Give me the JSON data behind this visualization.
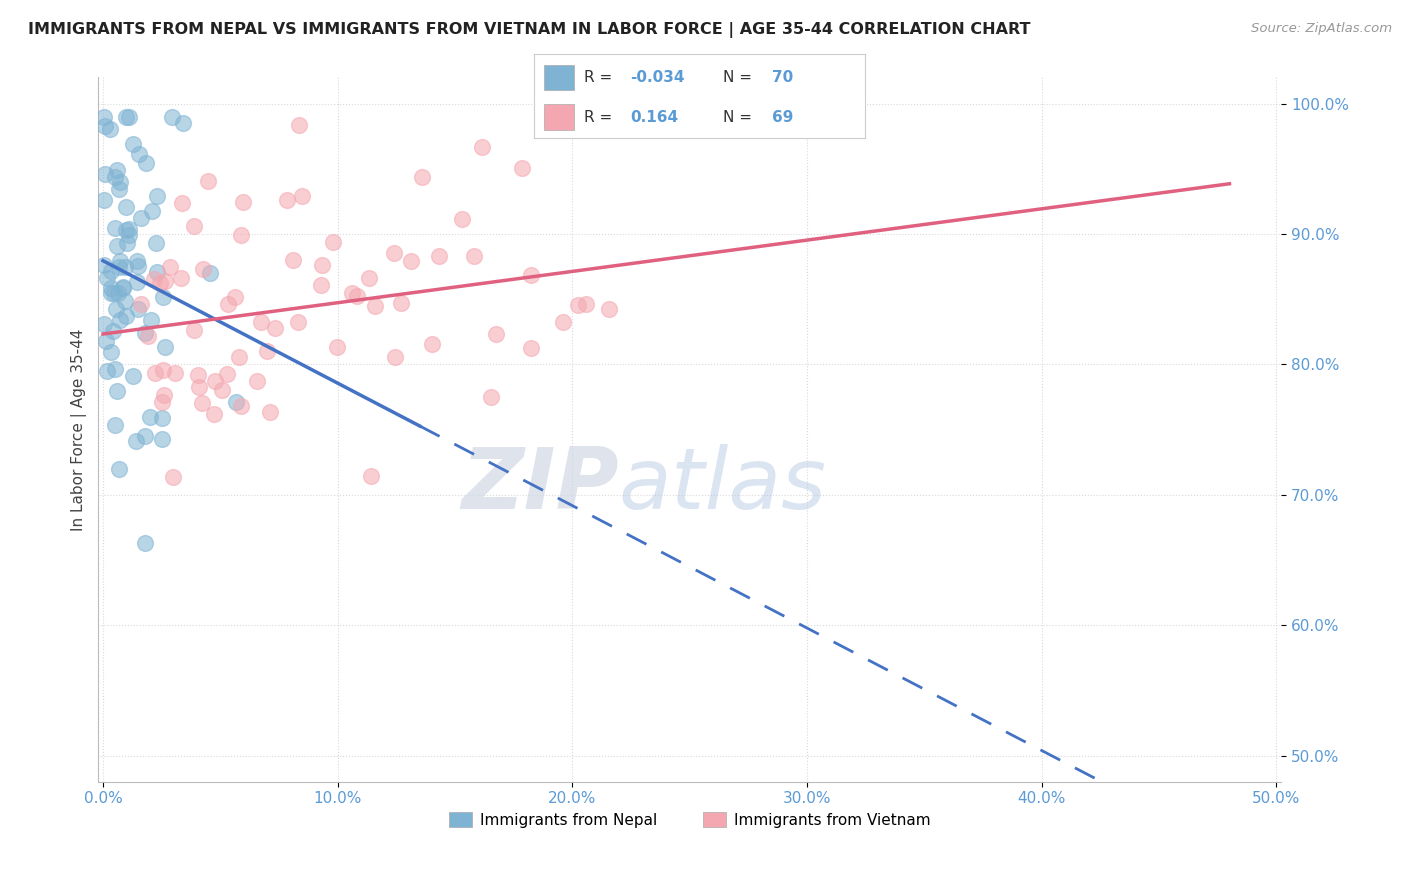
{
  "title": "IMMIGRANTS FROM NEPAL VS IMMIGRANTS FROM VIETNAM IN LABOR FORCE | AGE 35-44 CORRELATION CHART",
  "source": "Source: ZipAtlas.com",
  "ylabel": "In Labor Force | Age 35-44",
  "xlim": [
    -0.002,
    0.502
  ],
  "ylim": [
    0.48,
    1.02
  ],
  "xtick_values": [
    0.0,
    0.1,
    0.2,
    0.3,
    0.4,
    0.5
  ],
  "xtick_labels": [
    "0.0%",
    "10.0%",
    "20.0%",
    "30.0%",
    "40.0%",
    "50.0%"
  ],
  "ytick_values": [
    0.5,
    0.6,
    0.7,
    0.8,
    0.9,
    1.0
  ],
  "ytick_labels": [
    "50.0%",
    "60.0%",
    "70.0%",
    "80.0%",
    "90.0%",
    "100.0%"
  ],
  "nepal_color": "#7fb3d3",
  "vietnam_color": "#f4a7b0",
  "nepal_R": -0.034,
  "nepal_N": 70,
  "vietnam_R": 0.164,
  "vietnam_N": 69,
  "legend_label_nepal": "Immigrants from Nepal",
  "legend_label_vietnam": "Immigrants from Vietnam",
  "watermark_zip": "ZIP",
  "watermark_atlas": "atlas",
  "background_color": "#ffffff",
  "tick_color": "#5b9bd5",
  "grid_color": "#d9d9d9",
  "nepal_trend_color": "#4472c4",
  "vietnam_trend_color": "#e06080"
}
